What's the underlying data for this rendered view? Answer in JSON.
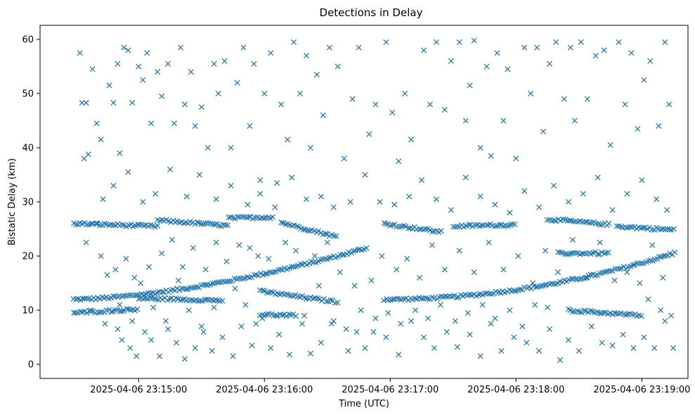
{
  "chart_data": {
    "type": "scatter",
    "title": "Detections in Delay",
    "xlabel": "Time (UTC)",
    "ylabel": "Bistatic Delay (km)",
    "marker": "x",
    "color": "#1f77b4",
    "grid": false,
    "x_unit": "seconds since 2025-04-06 23:15:00 UTC",
    "xlim": [
      -47,
      262
    ],
    "ylim": [
      -2.6,
      62.6
    ],
    "x_ticks": [
      {
        "value": 0,
        "label": "2025-04-06 23:15:00"
      },
      {
        "value": 60,
        "label": "2025-04-06 23:16:00"
      },
      {
        "value": 120,
        "label": "2025-04-06 23:17:00"
      },
      {
        "value": 180,
        "label": "2025-04-06 23:18:00"
      },
      {
        "value": 240,
        "label": "2025-04-06 23:19:00"
      }
    ],
    "y_ticks": [
      0,
      10,
      20,
      30,
      40,
      50,
      60
    ],
    "time_range": [
      -31,
      256
    ],
    "tracks": [
      {
        "t0": -31,
        "t1": 109,
        "y0": 12.0,
        "y1": 21.5,
        "curve": 1.6
      },
      {
        "t0": 117,
        "t1": 256,
        "y0": 12.0,
        "y1": 20.6,
        "curve": 2.0
      },
      {
        "t0": -31,
        "t1": 9,
        "y0": 26.0,
        "y1": 25.5,
        "curve": 1
      },
      {
        "t0": 9,
        "t1": 43,
        "y0": 26.6,
        "y1": 25.6,
        "curve": 1
      },
      {
        "t0": 43,
        "t1": 64,
        "y0": 27.0,
        "y1": 27.2,
        "curve": 1
      },
      {
        "t0": 68,
        "t1": 95,
        "y0": 26.2,
        "y1": 23.5,
        "curve": 1
      },
      {
        "t0": 117,
        "t1": 145,
        "y0": 26.0,
        "y1": 24.4,
        "curve": 1
      },
      {
        "t0": 150,
        "t1": 180,
        "y0": 25.5,
        "y1": 25.8,
        "curve": 1
      },
      {
        "t0": 195,
        "t1": 225,
        "y0": 26.8,
        "y1": 25.8,
        "curve": 1
      },
      {
        "t0": 228,
        "t1": 256,
        "y0": 25.5,
        "y1": 24.8,
        "curve": 1
      },
      {
        "t0": 0,
        "t1": 40,
        "y0": 12.2,
        "y1": 11.8,
        "curve": 1
      },
      {
        "t0": 58,
        "t1": 95,
        "y0": 13.5,
        "y1": 11.5,
        "curve": 1
      },
      {
        "t0": 205,
        "t1": 240,
        "y0": 10.0,
        "y1": 9.0,
        "curve": 1
      },
      {
        "t0": -31,
        "t1": 0,
        "y0": 9.5,
        "y1": 10.2,
        "curve": 1
      },
      {
        "t0": 58,
        "t1": 75,
        "y0": 9.2,
        "y1": 9.0,
        "curve": 1
      },
      {
        "t0": 200,
        "t1": 225,
        "y0": 20.5,
        "y1": 20.5,
        "curve": 1
      }
    ],
    "scatter_points": [
      [
        -28,
        57.5
      ],
      [
        -27,
        48.3
      ],
      [
        -25,
        48.3
      ],
      [
        -26,
        38.0
      ],
      [
        -24,
        38.8
      ],
      [
        -22,
        54.5
      ],
      [
        -20,
        44.5
      ],
      [
        -18,
        41.5
      ],
      [
        -14,
        51.5
      ],
      [
        -12,
        48.3
      ],
      [
        -10,
        55.5
      ],
      [
        -9,
        39.0
      ],
      [
        -7,
        58.5
      ],
      [
        -5,
        58.0
      ],
      [
        -3,
        48.3
      ],
      [
        0,
        55.0
      ],
      [
        2,
        52.5
      ],
      [
        4,
        57.5
      ],
      [
        6,
        44.5
      ],
      [
        9,
        54.0
      ],
      [
        11,
        49.5
      ],
      [
        14,
        55.5
      ],
      [
        17,
        44.5
      ],
      [
        20,
        58.5
      ],
      [
        22,
        48.0
      ],
      [
        25,
        54.0
      ],
      [
        27,
        44.0
      ],
      [
        30,
        47.5
      ],
      [
        33,
        40.0
      ],
      [
        36,
        55.5
      ],
      [
        38,
        50.0
      ],
      [
        41,
        56.0
      ],
      [
        44,
        40.0
      ],
      [
        47,
        52.0
      ],
      [
        50,
        58.5
      ],
      [
        53,
        44.0
      ],
      [
        55,
        55.5
      ],
      [
        58,
        34.0
      ],
      [
        60,
        50.0
      ],
      [
        63,
        57.5
      ],
      [
        66,
        33.5
      ],
      [
        68,
        48.0
      ],
      [
        71,
        41.5
      ],
      [
        74,
        59.5
      ],
      [
        77,
        50.0
      ],
      [
        80,
        57.0
      ],
      [
        82,
        40.0
      ],
      [
        85,
        53.5
      ],
      [
        88,
        46.0
      ],
      [
        91,
        58.5
      ],
      [
        95,
        55.0
      ],
      [
        98,
        38.0
      ],
      [
        102,
        49.0
      ],
      [
        105,
        58.5
      ],
      [
        110,
        42.5
      ],
      [
        113,
        48.0
      ],
      [
        118,
        59.5
      ],
      [
        121,
        46.5
      ],
      [
        124,
        37.5
      ],
      [
        127,
        50.0
      ],
      [
        130,
        41.5
      ],
      [
        136,
        58.0
      ],
      [
        139,
        48.0
      ],
      [
        142,
        59.5
      ],
      [
        146,
        47.0
      ],
      [
        149,
        56.0
      ],
      [
        153,
        59.5
      ],
      [
        156,
        45.0
      ],
      [
        158,
        51.5
      ],
      [
        160,
        59.8
      ],
      [
        163,
        40.0
      ],
      [
        166,
        55.0
      ],
      [
        168,
        38.5
      ],
      [
        171,
        57.5
      ],
      [
        174,
        45.0
      ],
      [
        176,
        54.5
      ],
      [
        180,
        38.0
      ],
      [
        184,
        58.5
      ],
      [
        187,
        50.0
      ],
      [
        190,
        58.5
      ],
      [
        193,
        43.0
      ],
      [
        196,
        55.5
      ],
      [
        199,
        59.5
      ],
      [
        203,
        49.0
      ],
      [
        206,
        58.5
      ],
      [
        208,
        45.0
      ],
      [
        211,
        59.5
      ],
      [
        214,
        49.0
      ],
      [
        218,
        57.0
      ],
      [
        222,
        58.0
      ],
      [
        225,
        40.5
      ],
      [
        229,
        59.5
      ],
      [
        232,
        48.0
      ],
      [
        235,
        57.5
      ],
      [
        238,
        43.5
      ],
      [
        241,
        52.5
      ],
      [
        244,
        56.0
      ],
      [
        248,
        44.0
      ],
      [
        251,
        59.5
      ],
      [
        253,
        48.0
      ],
      [
        -20,
        26.0
      ],
      [
        -15,
        16.5
      ],
      [
        -10,
        6.5
      ],
      [
        -8,
        4.5
      ],
      [
        -4,
        3.0
      ],
      [
        -1,
        1.5
      ],
      [
        3,
        6.0
      ],
      [
        6,
        4.5
      ],
      [
        10,
        1.5
      ],
      [
        14,
        6.5
      ],
      [
        18,
        4.0
      ],
      [
        22,
        1.0
      ],
      [
        27,
        3.0
      ],
      [
        31,
        6.0
      ],
      [
        35,
        2.5
      ],
      [
        40,
        5.0
      ],
      [
        45,
        1.5
      ],
      [
        49,
        7.0
      ],
      [
        54,
        3.5
      ],
      [
        59,
        8.5
      ],
      [
        63,
        3.0
      ],
      [
        67,
        5.5
      ],
      [
        72,
        1.8
      ],
      [
        78,
        7.5
      ],
      [
        82,
        2.0
      ],
      [
        87,
        4.0
      ],
      [
        93,
        8.0
      ],
      [
        100,
        2.5
      ],
      [
        104,
        6.0
      ],
      [
        108,
        3.0
      ],
      [
        113,
        8.5
      ],
      [
        118,
        5.0
      ],
      [
        124,
        1.8
      ],
      [
        130,
        8.0
      ],
      [
        136,
        5.0
      ],
      [
        141,
        3.0
      ],
      [
        147,
        6.0
      ],
      [
        152,
        3.2
      ],
      [
        158,
        5.5
      ],
      [
        163,
        1.5
      ],
      [
        168,
        7.5
      ],
      [
        173,
        2.5
      ],
      [
        179,
        5.0
      ],
      [
        185,
        4.0
      ],
      [
        191,
        2.5
      ],
      [
        196,
        6.5
      ],
      [
        201,
        0.8
      ],
      [
        205,
        4.5
      ],
      [
        210,
        2.5
      ],
      [
        216,
        7.0
      ],
      [
        221,
        4.0
      ],
      [
        226,
        3.5
      ],
      [
        231,
        5.5
      ],
      [
        236,
        3.0
      ],
      [
        241,
        5.0
      ],
      [
        246,
        3.0
      ],
      [
        251,
        8.0
      ],
      [
        255,
        3.0
      ],
      [
        -17,
        30.5
      ],
      [
        -12,
        33.0
      ],
      [
        -5,
        35.5
      ],
      [
        2,
        30.0
      ],
      [
        8,
        31.5
      ],
      [
        15,
        36.0
      ],
      [
        23,
        31.0
      ],
      [
        29,
        35.0
      ],
      [
        37,
        30.5
      ],
      [
        44,
        33.0
      ],
      [
        52,
        29.5
      ],
      [
        58,
        31.5
      ],
      [
        65,
        29.0
      ],
      [
        73,
        34.5
      ],
      [
        80,
        30.5
      ],
      [
        87,
        31.0
      ],
      [
        93,
        29.0
      ],
      [
        101,
        30.0
      ],
      [
        108,
        35.0
      ],
      [
        115,
        30.0
      ],
      [
        122,
        29.5
      ],
      [
        129,
        31.0
      ],
      [
        135,
        34.0
      ],
      [
        142,
        30.5
      ],
      [
        149,
        28.5
      ],
      [
        156,
        34.5
      ],
      [
        163,
        31.0
      ],
      [
        170,
        29.5
      ],
      [
        177,
        28.0
      ],
      [
        184,
        32.0
      ],
      [
        191,
        29.0
      ],
      [
        198,
        33.0
      ],
      [
        205,
        30.0
      ],
      [
        212,
        31.5
      ],
      [
        219,
        34.5
      ],
      [
        226,
        28.5
      ],
      [
        233,
        31.5
      ],
      [
        240,
        34.0
      ],
      [
        247,
        30.5
      ],
      [
        252,
        28.5
      ],
      [
        -25,
        22.5
      ],
      [
        -18,
        20.0
      ],
      [
        -11,
        17.5
      ],
      [
        -6,
        19.5
      ],
      [
        -2,
        16.0
      ],
      [
        5,
        18.0
      ],
      [
        11,
        20.5
      ],
      [
        16,
        23.0
      ],
      [
        21,
        18.0
      ],
      [
        26,
        21.5
      ],
      [
        32,
        17.5
      ],
      [
        37,
        22.5
      ],
      [
        42,
        19.0
      ],
      [
        48,
        22.0
      ],
      [
        53,
        21.5
      ],
      [
        57,
        20.0
      ],
      [
        62,
        19.5
      ],
      [
        70,
        22.5
      ],
      [
        75,
        21.0
      ],
      [
        84,
        20.0
      ],
      [
        90,
        22.5
      ],
      [
        96,
        17.0
      ],
      [
        103,
        14.5
      ],
      [
        111,
        15.5
      ],
      [
        116,
        20.0
      ],
      [
        123,
        17.5
      ],
      [
        128,
        19.5
      ],
      [
        134,
        16.0
      ],
      [
        140,
        22.0
      ],
      [
        146,
        17.5
      ],
      [
        153,
        21.0
      ],
      [
        160,
        17.0
      ],
      [
        167,
        22.5
      ],
      [
        174,
        17.5
      ],
      [
        181,
        20.0
      ],
      [
        188,
        15.0
      ],
      [
        194,
        21.0
      ],
      [
        200,
        17.0
      ],
      [
        207,
        23.0
      ],
      [
        214,
        16.0
      ],
      [
        220,
        22.5
      ],
      [
        227,
        15.5
      ],
      [
        233,
        17.0
      ],
      [
        239,
        15.0
      ],
      [
        245,
        22.0
      ],
      [
        250,
        16.0
      ],
      [
        -23,
        10.0
      ],
      [
        -16,
        7.5
      ],
      [
        -9,
        11.0
      ],
      [
        -3,
        8.0
      ],
      [
        1,
        15.0
      ],
      [
        7,
        10.5
      ],
      [
        13,
        8.0
      ],
      [
        19,
        15.5
      ],
      [
        24,
        10.0
      ],
      [
        30,
        7.0
      ],
      [
        36,
        10.5
      ],
      [
        46,
        14.0
      ],
      [
        51,
        11.0
      ],
      [
        56,
        7.5
      ],
      [
        79,
        9.0
      ],
      [
        86,
        14.5
      ],
      [
        92,
        7.5
      ],
      [
        99,
        6.5
      ],
      [
        106,
        10.0
      ],
      [
        112,
        6.0
      ],
      [
        119,
        9.5
      ],
      [
        125,
        7.5
      ],
      [
        132,
        10.0
      ],
      [
        138,
        8.5
      ],
      [
        144,
        11.0
      ],
      [
        151,
        8.0
      ],
      [
        157,
        9.5
      ],
      [
        164,
        11.0
      ],
      [
        170,
        8.5
      ],
      [
        177,
        10.0
      ],
      [
        183,
        7.0
      ],
      [
        189,
        11.0
      ],
      [
        195,
        10.5
      ],
      [
        243,
        12.0
      ],
      [
        249,
        10.0
      ],
      [
        254,
        9.0
      ]
    ]
  }
}
